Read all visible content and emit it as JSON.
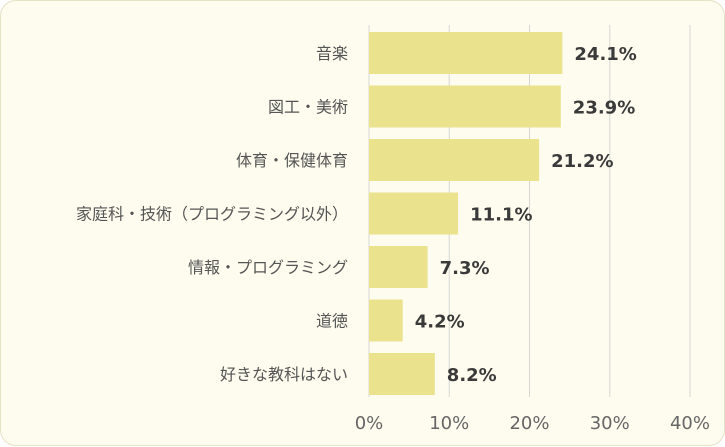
{
  "chart_data": {
    "type": "bar",
    "orientation": "horizontal",
    "categories": [
      "音楽",
      "図工・美術",
      "体育・保健体育",
      "家庭科・技術（プログラミング以外）",
      "情報・プログラミング",
      "道徳",
      "好きな教科はない"
    ],
    "values": [
      24.1,
      23.9,
      21.2,
      11.1,
      7.3,
      4.2,
      8.2
    ],
    "value_labels": [
      "24.1%",
      "23.9%",
      "21.2%",
      "11.1%",
      "7.3%",
      "4.2%",
      "8.2%"
    ],
    "x_ticks": [
      0,
      10,
      20,
      30,
      40
    ],
    "x_tick_labels": [
      "0%",
      "10%",
      "20%",
      "30%",
      "40%"
    ],
    "xlim": [
      0,
      40
    ],
    "grid": true,
    "colors": {
      "bar": "#ebe28e",
      "background": "#fdfcee",
      "grid": "#d6d6d6"
    }
  }
}
